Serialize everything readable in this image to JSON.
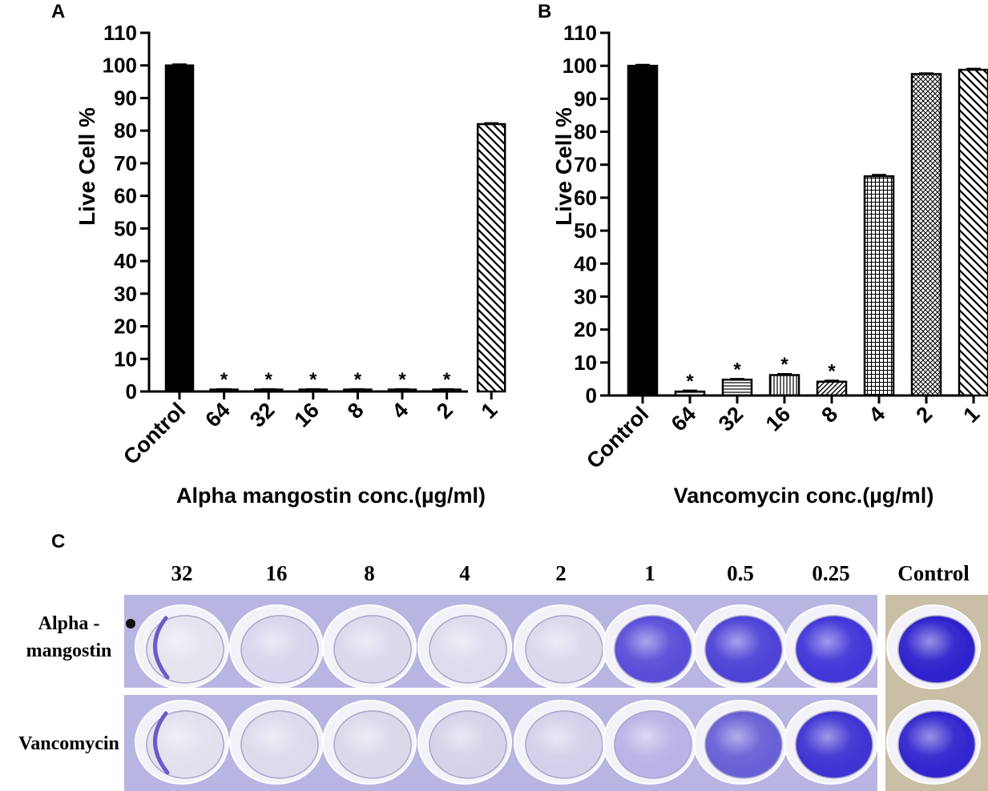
{
  "chart_data": [
    {
      "type": "bar",
      "panel_label": "A",
      "title": "",
      "ylabel": "Live Cell %",
      "xlabel": "Alpha mangostin conc.(µg/ml)",
      "ylim": [
        0,
        110
      ],
      "yticks": [
        0,
        10,
        20,
        30,
        40,
        50,
        60,
        70,
        80,
        90,
        100,
        110
      ],
      "categories": [
        "Control",
        "64",
        "32",
        "16",
        "8",
        "4",
        "2",
        "1"
      ],
      "values": [
        100,
        0.6,
        0.6,
        0.6,
        0.6,
        0.6,
        0.6,
        82
      ],
      "errors": [
        0.3,
        0.1,
        0.1,
        0.1,
        0.1,
        0.1,
        0.1,
        0.3
      ],
      "patterns": [
        "solid",
        "none",
        "none",
        "none",
        "none",
        "none",
        "none",
        "diag-down"
      ],
      "significance": [
        "",
        "*",
        "*",
        "*",
        "*",
        "*",
        "*",
        ""
      ],
      "grid": false,
      "legend": "none"
    },
    {
      "type": "bar",
      "panel_label": "B",
      "title": "",
      "ylabel": "Live Cell %",
      "xlabel": "Vancomycin conc.(µg/ml)",
      "ylim": [
        0,
        110
      ],
      "yticks": [
        0,
        10,
        20,
        30,
        40,
        50,
        60,
        70,
        80,
        90,
        100,
        110
      ],
      "categories": [
        "Control",
        "64",
        "32",
        "16",
        "8",
        "4",
        "2",
        "1"
      ],
      "values": [
        100,
        1.2,
        4.8,
        6.2,
        4.2,
        66.5,
        97.5,
        98.8
      ],
      "errors": [
        0.3,
        0.3,
        0.2,
        0.3,
        0.3,
        0.4,
        0.2,
        0.3
      ],
      "patterns": [
        "solid",
        "horizontal",
        "horizontal",
        "vertical",
        "diag-up",
        "grid",
        "crosshatch",
        "diag-down"
      ],
      "significance": [
        "",
        "*",
        "*",
        "*",
        "*",
        "",
        "",
        ""
      ],
      "grid": false,
      "legend": "none"
    }
  ],
  "panel_c": {
    "panel_label": "C",
    "concentrations": [
      "32",
      "16",
      "8",
      "4",
      "2",
      "1",
      "0.5",
      "0.25"
    ],
    "control_label": "Control",
    "rows": [
      {
        "label_lines": [
          "Alpha -",
          "mangostin"
        ],
        "wells": [
          "#e6e3ef",
          "#d9d5ee",
          "#dcd8ec",
          "#dedbec",
          "#dcd8ec",
          "#5a4ed8",
          "#4e43d6",
          "#4236d8"
        ],
        "control_well": "#2f22cc"
      },
      {
        "label_lines": [
          "Vancomycin"
        ],
        "wells": [
          "#e3e0ee",
          "#dedaec",
          "#dcd8ea",
          "#d6d2ea",
          "#d4d0ea",
          "#b9b3e6",
          "#6a60d6",
          "#3f33d2"
        ],
        "control_well": "#3326ce"
      }
    ],
    "colors": {
      "plate_background": "#b8b5e2",
      "well_rim": "#f2f2f8",
      "ring_stain": "#6a5cc8",
      "divider": "#ffffff"
    }
  }
}
